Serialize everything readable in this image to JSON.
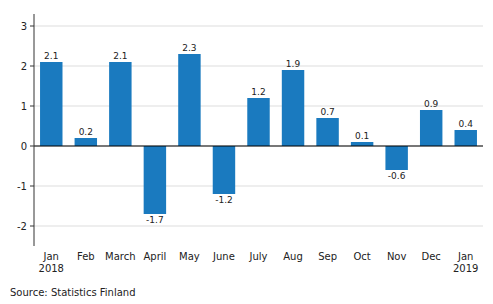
{
  "chart_data": {
    "type": "bar",
    "categories": [
      "Jan\n2018",
      "Feb",
      "March",
      "April",
      "May",
      "June",
      "July",
      "Aug",
      "Sep",
      "Oct",
      "Nov",
      "Dec",
      "Jan\n2019"
    ],
    "values": [
      2.1,
      0.2,
      2.1,
      -1.7,
      2.3,
      -1.2,
      1.2,
      1.9,
      0.7,
      0.1,
      -0.6,
      0.9,
      0.4
    ],
    "color": "#1a7abf",
    "ylim": [
      -2.5,
      3.3
    ],
    "yticks": [
      -2,
      -1,
      0,
      1,
      2,
      3
    ],
    "grid": true,
    "data_labels": true,
    "source": "Source: Statistics Finland"
  }
}
